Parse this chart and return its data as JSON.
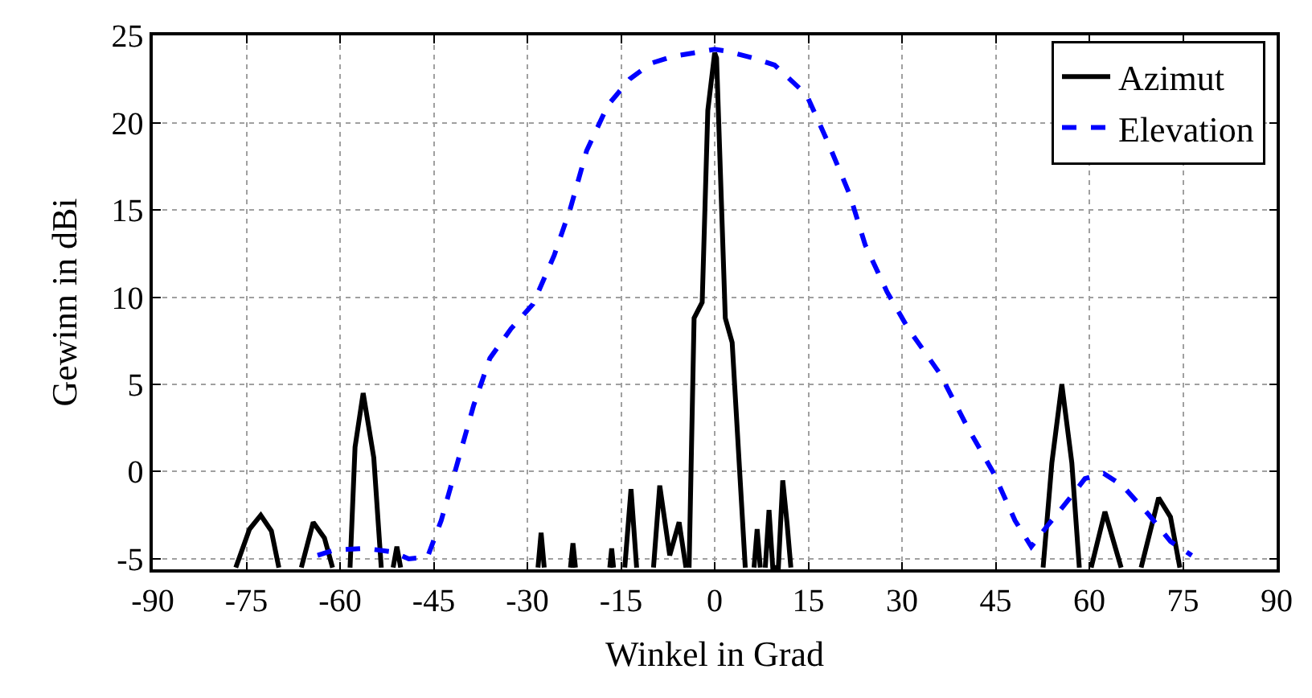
{
  "chart_data": {
    "type": "line",
    "xlabel": "Winkel in Grad",
    "ylabel": "Gewinn in dBi",
    "xlim": [
      -90,
      90
    ],
    "xticks": [
      -90,
      -75,
      -60,
      -45,
      -30,
      -15,
      0,
      15,
      30,
      45,
      60,
      75,
      90
    ],
    "ylim": [
      -5.6,
      25
    ],
    "yticks": [
      -5,
      0,
      5,
      10,
      15,
      20,
      25
    ],
    "grid": true,
    "legend": "top right",
    "marker": "none",
    "series": [
      {
        "name": "Azimut",
        "color": "#000000",
        "line_style": "solid",
        "x": [
          -76.7,
          -74.5,
          -72.7,
          -71,
          -69.8,
          null,
          -66.2,
          -64.3,
          -62.5,
          -61.2,
          null,
          -58.4,
          -57.6,
          -56.3,
          -54.6,
          -53.4,
          null,
          -51.5,
          -50.9,
          -50.3,
          null,
          -28.3,
          -27.8,
          -27.3,
          null,
          -23.1,
          -22.7,
          -22.3,
          null,
          -16.8,
          -16.5,
          -16.2,
          null,
          -14.4,
          -13.4,
          -12.5,
          null,
          -9.8,
          -8.8,
          -7.2,
          -5.7,
          -4.6,
          null,
          -4.1,
          -3.3,
          -2,
          -1.1,
          0,
          0.3,
          1.7,
          2.8,
          4.9,
          null,
          6.3,
          6.8,
          7.3,
          null,
          8.1,
          8.7,
          9.3,
          10.2,
          10.9,
          11.6,
          12.2,
          null,
          52.6,
          54,
          55.6,
          57.2,
          58.4,
          null,
          60.3,
          62.5,
          65.1,
          null,
          68.3,
          71.1,
          73,
          74.5
        ],
        "values": [
          -5.5,
          -3.3,
          -2.5,
          -3.4,
          -5.5,
          null,
          -5.5,
          -2.9,
          -3.8,
          -5.5,
          null,
          -5.5,
          1.4,
          4.5,
          0.8,
          -5.5,
          null,
          -5.5,
          -4.3,
          -5.5,
          null,
          -5.5,
          -3.5,
          -5.5,
          null,
          -5.5,
          -4.1,
          -5.5,
          null,
          -5.5,
          -4.4,
          -5.5,
          null,
          -5.5,
          -1.0,
          -5.5,
          null,
          -5.5,
          -0.8,
          -4.8,
          -2.9,
          -5.5,
          null,
          -5.5,
          8.8,
          9.7,
          20.7,
          24.0,
          23.7,
          8.8,
          7.4,
          -5.5,
          null,
          -5.5,
          -3.3,
          -5.5,
          null,
          -5.5,
          -2.2,
          -5.5,
          -5.5,
          -0.5,
          -3.0,
          -5.5,
          null,
          -5.5,
          0.5,
          5.0,
          0.5,
          -5.5,
          null,
          -5.5,
          -2.3,
          -5.5,
          null,
          -5.5,
          -1.5,
          -2.6,
          -5.5
        ]
      },
      {
        "name": "Elevation",
        "color": "#0000ff",
        "line_style": "dashed",
        "x": [
          -63.6,
          -61,
          -55.9,
          -51.6,
          -49,
          -46,
          -43.8,
          -41.2,
          -38.6,
          -36,
          -32.6,
          -29.1,
          -25.7,
          -23.1,
          -20.5,
          -17.1,
          -13.6,
          -10.2,
          -6.7,
          -3.3,
          0,
          1.9,
          6.2,
          9.6,
          14.7,
          18.1,
          21.6,
          24.1,
          27.6,
          31,
          36.1,
          40.4,
          44.7,
          48.1,
          50.7,
          53.3,
          56.7,
          59.3,
          62.3,
          65.3,
          69.6,
          73,
          76.4
        ],
        "values": [
          -4.8,
          -4.5,
          -4.4,
          -4.6,
          -5.0,
          -4.9,
          -2.8,
          0.5,
          3.8,
          6.5,
          8.2,
          9.6,
          12.4,
          15.1,
          18.4,
          21.0,
          22.5,
          23.4,
          23.8,
          24.0,
          24.2,
          24.1,
          23.7,
          23.3,
          21.6,
          18.9,
          15.9,
          13.0,
          10.3,
          8.2,
          5.6,
          2.6,
          -0.1,
          -2.8,
          -4.3,
          -3.1,
          -1.6,
          -0.4,
          -0.1,
          -0.8,
          -2.5,
          -4.0,
          -4.8
        ]
      }
    ]
  }
}
